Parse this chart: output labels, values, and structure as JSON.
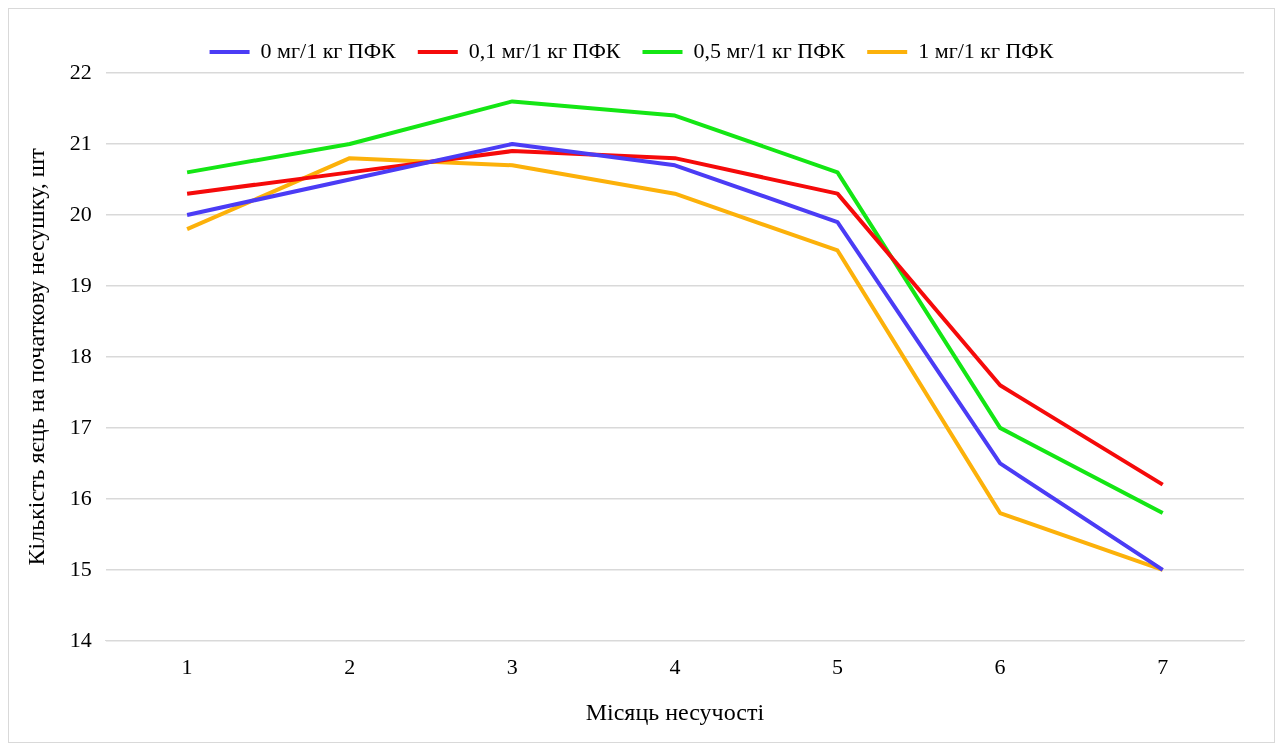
{
  "chart_data": {
    "type": "line",
    "xlabel": "Місяць несучості",
    "ylabel": "Кількість яєць на початкову несушку, шт",
    "categories": [
      "1",
      "2",
      "3",
      "4",
      "5",
      "6",
      "7"
    ],
    "series": [
      {
        "name": "0 мг/1 кг ПФК",
        "color": "#4b3cf5",
        "values": [
          20.0,
          20.5,
          21.0,
          20.7,
          19.9,
          16.5,
          15.0
        ]
      },
      {
        "name": "0,1 мг/1 кг ПФК",
        "color": "#f50a0a",
        "values": [
          20.3,
          20.6,
          20.9,
          20.8,
          20.3,
          17.6,
          16.2
        ]
      },
      {
        "name": "0,5 мг/1 кг ПФК",
        "color": "#14e614",
        "values": [
          20.6,
          21.0,
          21.6,
          21.4,
          20.6,
          17.0,
          15.8
        ]
      },
      {
        "name": "1 мг/1 кг ПФК",
        "color": "#fcb10a",
        "values": [
          19.8,
          20.8,
          20.7,
          20.3,
          19.5,
          15.8,
          15.0
        ]
      }
    ],
    "ylim": [
      14,
      22
    ],
    "yticks": [
      14,
      15,
      16,
      17,
      18,
      19,
      20,
      21,
      22
    ],
    "grid": "y",
    "legend": "top",
    "marker": "none",
    "line_style": "solid"
  }
}
